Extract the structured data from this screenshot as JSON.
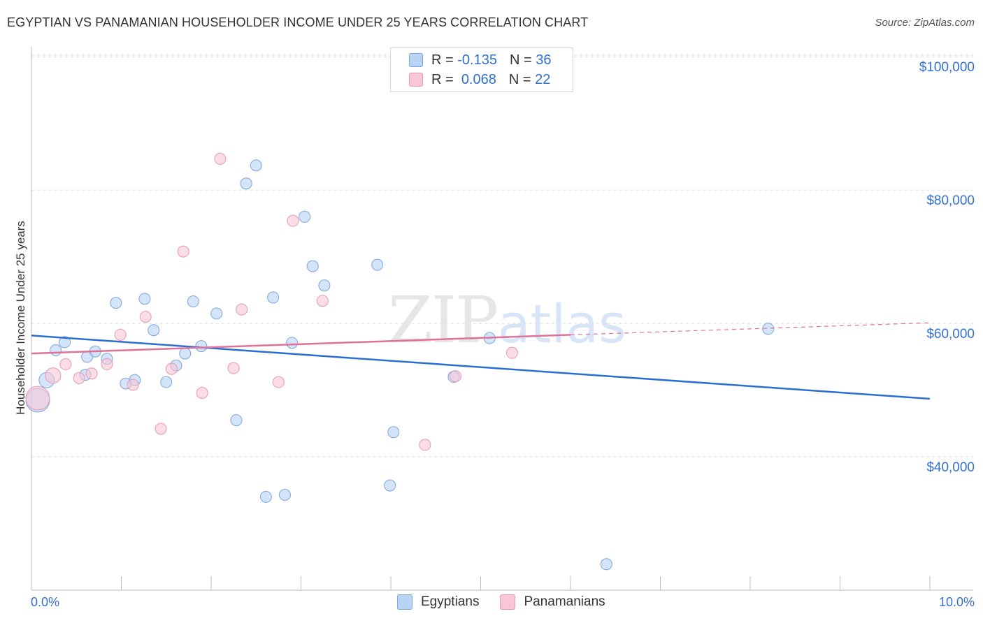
{
  "header": {
    "title": "EGYPTIAN VS PANAMANIAN HOUSEHOLDER INCOME UNDER 25 YEARS CORRELATION CHART",
    "source": "Source: ZipAtlas.com"
  },
  "stats": {
    "r_label": "R =",
    "n_label": "N =",
    "rows": [
      {
        "r": "-0.135",
        "n": "36"
      },
      {
        "r": "0.068",
        "n": "22"
      }
    ]
  },
  "watermark": {
    "zip": "ZIP",
    "atlas": "atlas"
  },
  "colors": {
    "egyptian_fill": "#b9d3f5",
    "egyptian_stroke": "#7aa4dc",
    "egyptian_line": "#2a6fcf",
    "panamanian_fill": "#f8c6d6",
    "panamanian_stroke": "#e896b1",
    "panamanian_line": "#e07199",
    "axis_text": "#3470cf"
  },
  "chart_data": {
    "type": "scatter",
    "title": "EGYPTIAN VS PANAMANIAN HOUSEHOLDER INCOME UNDER 25 YEARS CORRELATION CHART",
    "xlabel": "",
    "ylabel": "Householder Income Under 25 years",
    "xlim": [
      0,
      10
    ],
    "ylim": [
      20000,
      101500
    ],
    "x_unit": "%",
    "grid": true,
    "legend_position": "bottom",
    "y_tick_values": [
      40000,
      60000,
      80000,
      100000
    ],
    "y_tick_labels": [
      "$40,000",
      "$60,000",
      "$80,000",
      "$100,000"
    ],
    "x_tick_labels": [
      "0.0%",
      "10.0%"
    ],
    "series": [
      {
        "name": "Egyptians",
        "r": -0.135,
        "n": 36,
        "trend": {
          "x": [
            0,
            10
          ],
          "y": [
            58200,
            48700
          ]
        },
        "points": [
          {
            "x": 0.07,
            "y": 48500,
            "s": 3
          },
          {
            "x": 0.17,
            "y": 51500,
            "s": 2
          },
          {
            "x": 0.27,
            "y": 56000,
            "s": 1
          },
          {
            "x": 0.37,
            "y": 57200,
            "s": 1
          },
          {
            "x": 0.6,
            "y": 52300,
            "s": 1
          },
          {
            "x": 0.62,
            "y": 55000,
            "s": 1
          },
          {
            "x": 0.71,
            "y": 55800,
            "s": 1
          },
          {
            "x": 0.84,
            "y": 54700,
            "s": 1
          },
          {
            "x": 0.94,
            "y": 63100,
            "s": 1
          },
          {
            "x": 1.05,
            "y": 51000,
            "s": 1
          },
          {
            "x": 1.15,
            "y": 51500,
            "s": 1
          },
          {
            "x": 1.26,
            "y": 63700,
            "s": 1
          },
          {
            "x": 1.36,
            "y": 59000,
            "s": 1
          },
          {
            "x": 1.5,
            "y": 51200,
            "s": 1
          },
          {
            "x": 1.61,
            "y": 53700,
            "s": 1
          },
          {
            "x": 1.71,
            "y": 55500,
            "s": 1
          },
          {
            "x": 1.8,
            "y": 63300,
            "s": 1
          },
          {
            "x": 1.89,
            "y": 56600,
            "s": 1
          },
          {
            "x": 2.06,
            "y": 61500,
            "s": 1
          },
          {
            "x": 2.28,
            "y": 45500,
            "s": 1
          },
          {
            "x": 2.39,
            "y": 81000,
            "s": 1
          },
          {
            "x": 2.5,
            "y": 83700,
            "s": 1
          },
          {
            "x": 2.61,
            "y": 34000,
            "s": 1
          },
          {
            "x": 2.69,
            "y": 63900,
            "s": 1
          },
          {
            "x": 2.82,
            "y": 34300,
            "s": 1
          },
          {
            "x": 2.9,
            "y": 57100,
            "s": 1
          },
          {
            "x": 3.04,
            "y": 76000,
            "s": 1
          },
          {
            "x": 3.13,
            "y": 68600,
            "s": 1
          },
          {
            "x": 3.26,
            "y": 65700,
            "s": 1
          },
          {
            "x": 3.85,
            "y": 68800,
            "s": 1
          },
          {
            "x": 3.99,
            "y": 35700,
            "s": 1
          },
          {
            "x": 4.03,
            "y": 43700,
            "s": 1
          },
          {
            "x": 4.7,
            "y": 52000,
            "s": 1
          },
          {
            "x": 5.1,
            "y": 57800,
            "s": 1
          },
          {
            "x": 6.4,
            "y": 23900,
            "s": 1
          },
          {
            "x": 8.2,
            "y": 59200,
            "s": 1
          }
        ]
      },
      {
        "name": "Panamanians",
        "r": 0.068,
        "n": 22,
        "trend": {
          "x": [
            0,
            6
          ],
          "y": [
            55500,
            58300
          ]
        },
        "trend_extension": {
          "x": [
            6,
            10
          ],
          "y": [
            58300,
            60100
          ]
        },
        "points": [
          {
            "x": 0.07,
            "y": 48800,
            "s": 3
          },
          {
            "x": 0.24,
            "y": 52200,
            "s": 2
          },
          {
            "x": 0.38,
            "y": 53900,
            "s": 1
          },
          {
            "x": 0.53,
            "y": 51800,
            "s": 1
          },
          {
            "x": 0.67,
            "y": 52500,
            "s": 1
          },
          {
            "x": 0.84,
            "y": 53900,
            "s": 1
          },
          {
            "x": 0.99,
            "y": 58300,
            "s": 1
          },
          {
            "x": 1.13,
            "y": 50800,
            "s": 1
          },
          {
            "x": 1.27,
            "y": 61000,
            "s": 1
          },
          {
            "x": 1.44,
            "y": 44200,
            "s": 1
          },
          {
            "x": 1.56,
            "y": 53200,
            "s": 1
          },
          {
            "x": 1.69,
            "y": 70800,
            "s": 1
          },
          {
            "x": 1.9,
            "y": 49600,
            "s": 1
          },
          {
            "x": 2.1,
            "y": 84700,
            "s": 1
          },
          {
            "x": 2.25,
            "y": 53300,
            "s": 1
          },
          {
            "x": 2.34,
            "y": 62100,
            "s": 1
          },
          {
            "x": 2.75,
            "y": 51200,
            "s": 1
          },
          {
            "x": 2.91,
            "y": 75400,
            "s": 1
          },
          {
            "x": 3.24,
            "y": 63400,
            "s": 1
          },
          {
            "x": 4.38,
            "y": 41800,
            "s": 1
          },
          {
            "x": 4.72,
            "y": 52100,
            "s": 1
          },
          {
            "x": 5.35,
            "y": 55600,
            "s": 1
          }
        ]
      }
    ]
  }
}
